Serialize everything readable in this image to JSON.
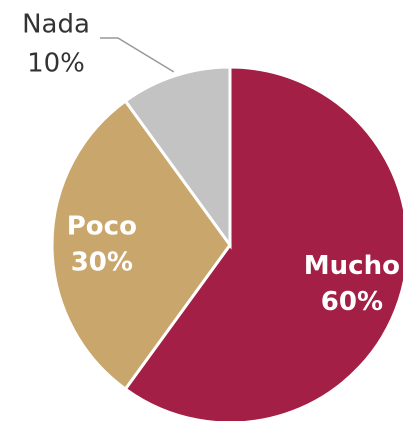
{
  "chart_data": {
    "type": "pie",
    "categories": [
      "Mucho",
      "Poco",
      "Nada"
    ],
    "values": [
      60,
      30,
      10
    ],
    "value_labels": [
      "60%",
      "30%",
      "10%"
    ],
    "colors": [
      "#a31f45",
      "#c9a66b",
      "#c3c3c3"
    ]
  }
}
